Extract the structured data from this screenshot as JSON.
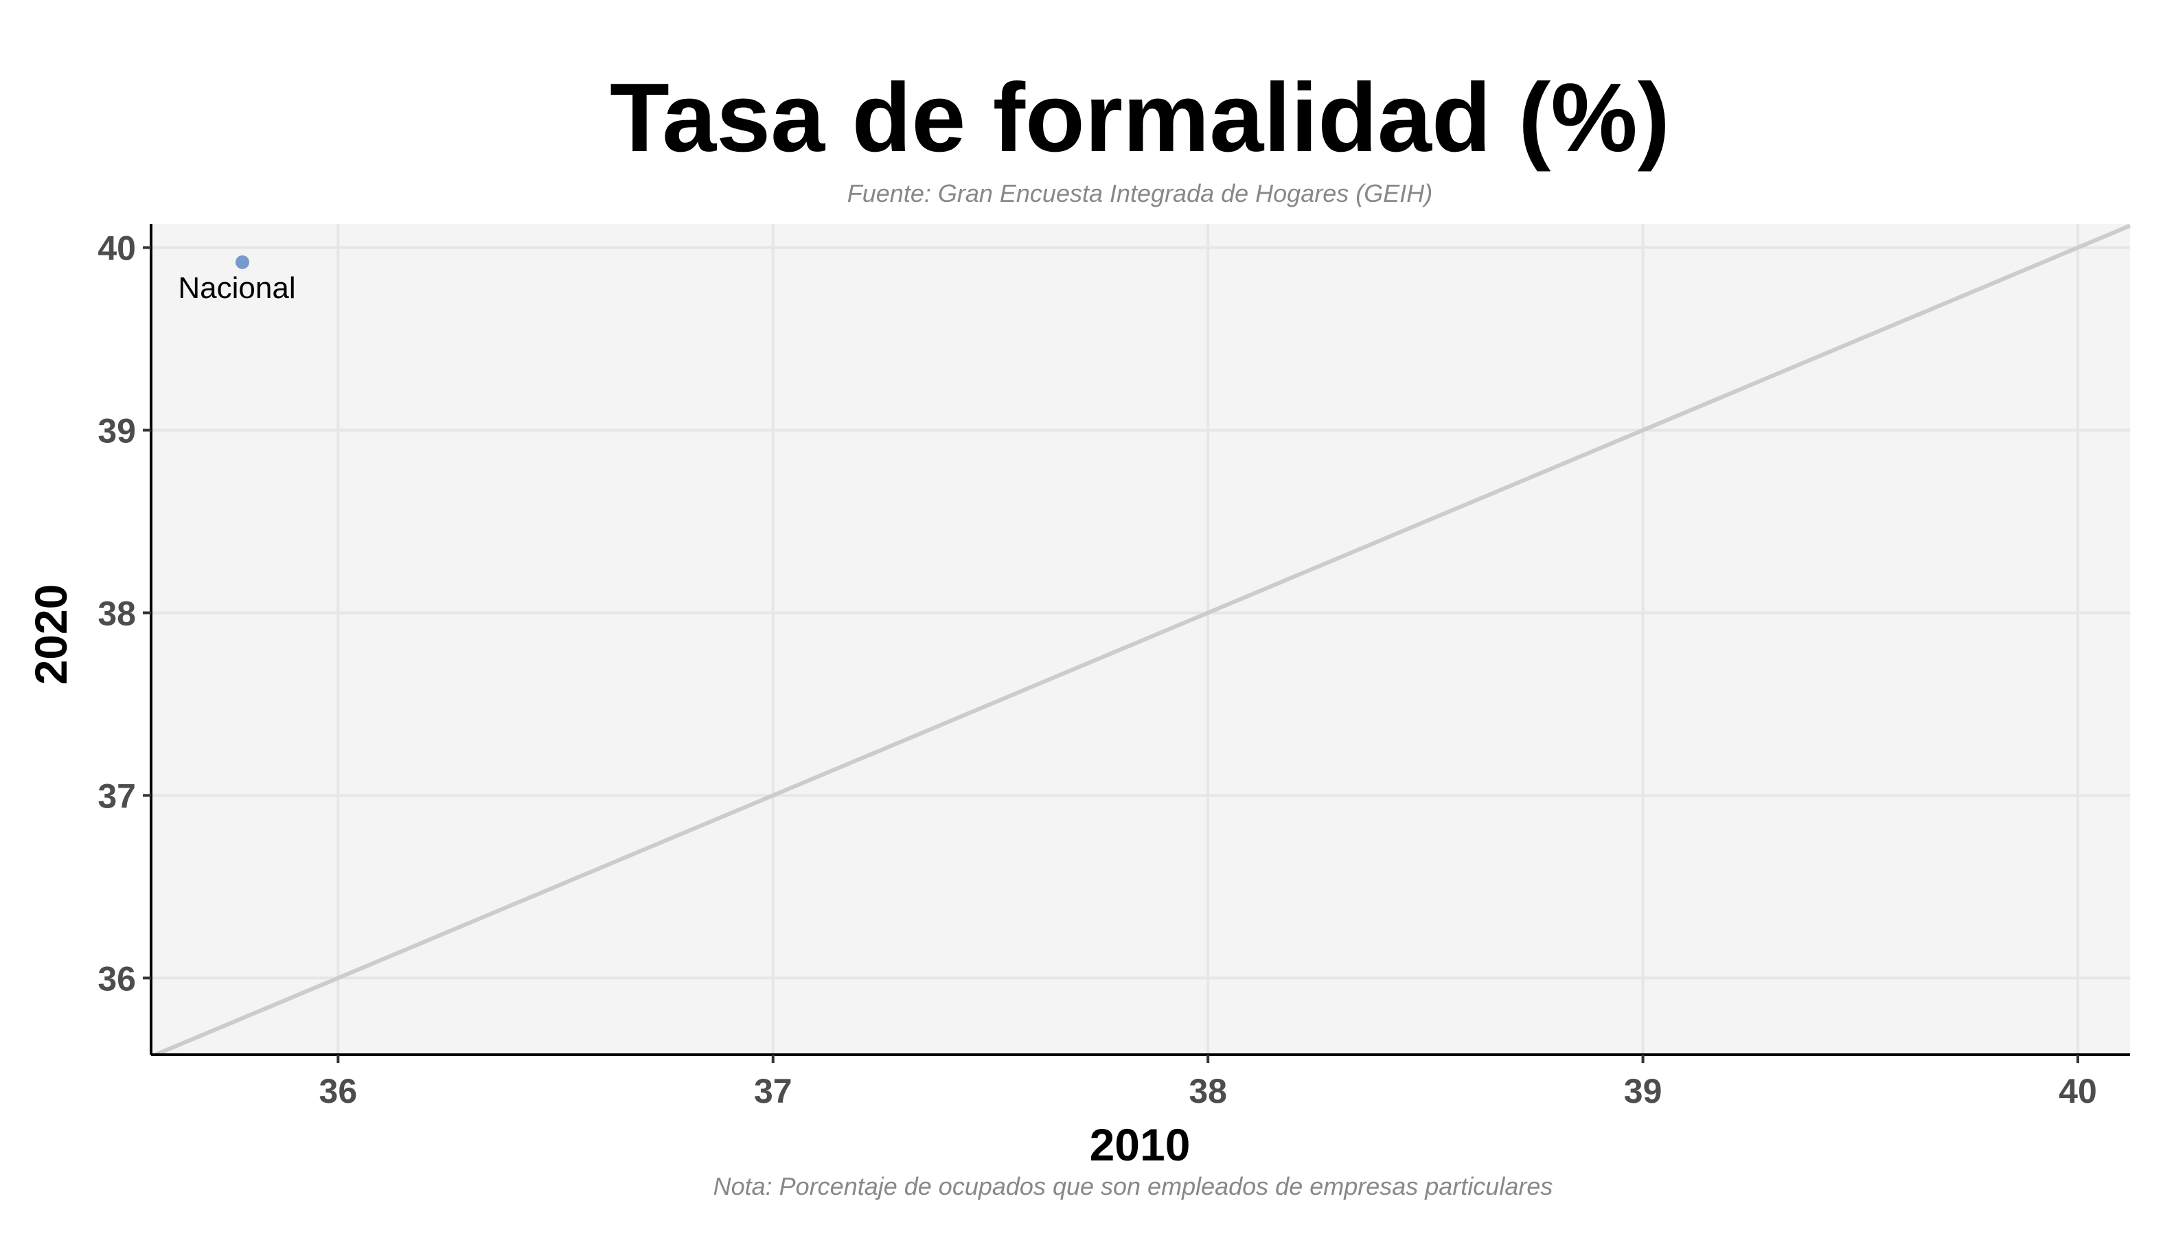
{
  "chart_data": {
    "type": "scatter",
    "title": "Tasa de formalidad (%)",
    "subtitle": "Fuente: Gran Encuesta Integrada de Hogares (GEIH)",
    "caption": "Nota: Porcentaje de ocupados que son empleados de empresas particulares",
    "xlabel": "2010",
    "ylabel": "2020",
    "xlim": [
      35.57,
      40.12
    ],
    "ylim": [
      35.58,
      40.13
    ],
    "xticks": [
      "36",
      "37",
      "38",
      "39",
      "40"
    ],
    "yticks": [
      "36",
      "37",
      "38",
      "39",
      "40"
    ],
    "grid": true,
    "points": [
      {
        "label": "Nacional",
        "x": 35.78,
        "y": 39.92
      }
    ],
    "reference_line": {
      "type": "identity"
    },
    "colors": {
      "point": "#7799cc",
      "panel": "#f4f4f4",
      "grid": "#e6e6e6",
      "reference_line": "#cccccc",
      "title": "#000000",
      "subtitle": "#888888",
      "tick_label": "#4d4d4d",
      "axis": "#000000"
    }
  }
}
